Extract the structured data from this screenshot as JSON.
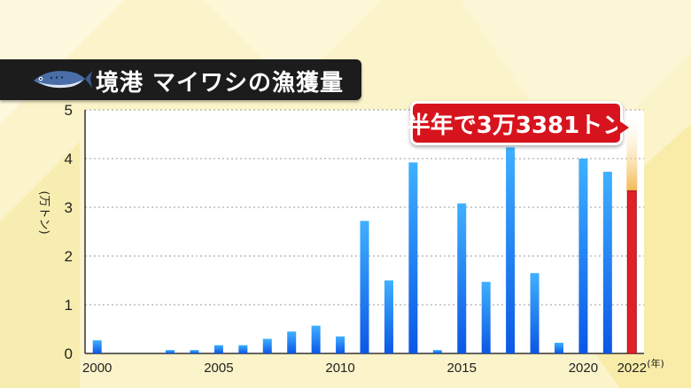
{
  "title": "境港 マイワシの漁獲量",
  "callout": "半年で3万3381トン",
  "colors": {
    "bar_top": "#3fb0ff",
    "bar_bottom": "#0b57e6",
    "highlight_bar": "#e0202a",
    "background": "#fbf3c9",
    "banner": "#1c1c1c"
  },
  "chart_data": {
    "type": "bar",
    "title": "境港 マイワシの漁獲量",
    "ylabel": "(万トン)",
    "xlabel": "(年)",
    "ylim": [
      0,
      5
    ],
    "yticks": [
      "0",
      "1",
      "2",
      "3",
      "4",
      "5"
    ],
    "xtick_labels": [
      "2000",
      "2005",
      "2010",
      "2015",
      "2020",
      "2022"
    ],
    "categories": [
      "2000",
      "2001",
      "2002",
      "2003",
      "2004",
      "2005",
      "2006",
      "2007",
      "2008",
      "2009",
      "2010",
      "2011",
      "2012",
      "2013",
      "2014",
      "2015",
      "2016",
      "2017",
      "2018",
      "2019",
      "2020",
      "2021",
      "2022"
    ],
    "values": [
      0.27,
      0,
      0,
      0.07,
      0.07,
      0.17,
      0.17,
      0.3,
      0.45,
      0.57,
      0.35,
      2.72,
      1.5,
      3.92,
      0.07,
      3.08,
      1.47,
      4.23,
      1.65,
      0.22,
      4.0,
      3.73,
      3.3381
    ],
    "highlight": "2022",
    "grid": true
  }
}
